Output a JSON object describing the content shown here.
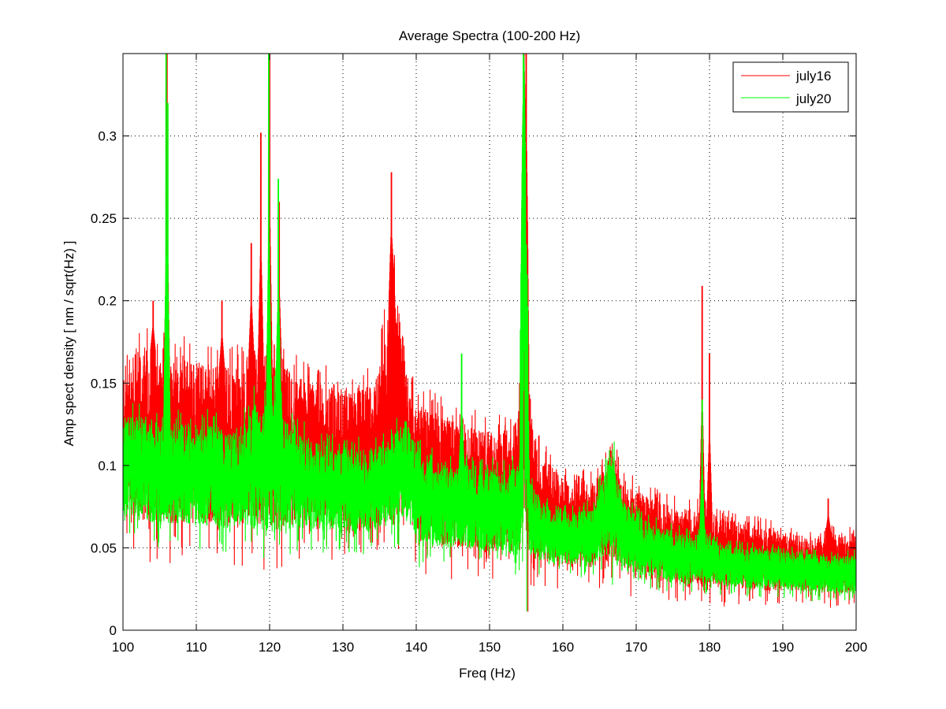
{
  "chart_data": {
    "type": "line",
    "title": "Average Spectra (100-200 Hz)",
    "xlabel": "Freq (Hz)",
    "ylabel": "Amp spect density [ nm / sqrt(Hz) ]",
    "xlim": [
      100,
      200
    ],
    "ylim": [
      0,
      0.35
    ],
    "xticks": [
      100,
      110,
      120,
      130,
      140,
      150,
      160,
      170,
      180,
      190,
      200
    ],
    "yticks": [
      0,
      0.05,
      0.1,
      0.15,
      0.2,
      0.25,
      0.3
    ],
    "ytick_labels": [
      "0",
      "0.05",
      "0.1",
      "0.15",
      "0.2",
      "0.25",
      "0.3"
    ],
    "grid": true,
    "legend": "top-right",
    "series": [
      {
        "name": "july16",
        "color": "#ff0000",
        "x": [
          100,
          102,
          104,
          106,
          108,
          110,
          112,
          114,
          116,
          118,
          120,
          121,
          122,
          124,
          126,
          128,
          130,
          132,
          134,
          135,
          136,
          137,
          138,
          139,
          140,
          142,
          144,
          146,
          148,
          150,
          152,
          154,
          154.7,
          155.5,
          157,
          160,
          162,
          164,
          166,
          166.5,
          168,
          170,
          172,
          175,
          178,
          179,
          180,
          182,
          185,
          188,
          190,
          192,
          195,
          196.2,
          198,
          200
        ],
        "min": [
          0.065,
          0.065,
          0.065,
          0.065,
          0.065,
          0.065,
          0.065,
          0.063,
          0.062,
          0.066,
          0.06,
          0.06,
          0.062,
          0.064,
          0.064,
          0.062,
          0.06,
          0.058,
          0.06,
          0.062,
          0.065,
          0.07,
          0.07,
          0.07,
          0.055,
          0.052,
          0.05,
          0.05,
          0.05,
          0.048,
          0.048,
          0.048,
          0.05,
          0.045,
          0.04,
          0.038,
          0.038,
          0.038,
          0.04,
          0.045,
          0.035,
          0.032,
          0.03,
          0.028,
          0.028,
          0.028,
          0.027,
          0.025,
          0.025,
          0.024,
          0.024,
          0.024,
          0.023,
          0.023,
          0.022,
          0.022
        ],
        "max": [
          0.16,
          0.17,
          0.17,
          0.165,
          0.165,
          0.165,
          0.16,
          0.16,
          0.16,
          0.17,
          0.165,
          0.16,
          0.16,
          0.155,
          0.15,
          0.15,
          0.148,
          0.145,
          0.148,
          0.16,
          0.19,
          0.22,
          0.18,
          0.145,
          0.14,
          0.135,
          0.13,
          0.125,
          0.125,
          0.12,
          0.12,
          0.13,
          0.35,
          0.13,
          0.105,
          0.095,
          0.092,
          0.09,
          0.1,
          0.118,
          0.09,
          0.085,
          0.08,
          0.075,
          0.072,
          0.075,
          0.072,
          0.068,
          0.065,
          0.062,
          0.06,
          0.058,
          0.056,
          0.06,
          0.058,
          0.06
        ],
        "peaks": [
          [
            104.1,
            0.2
          ],
          [
            106.0,
            0.35
          ],
          [
            113.5,
            0.2
          ],
          [
            117.5,
            0.235
          ],
          [
            118.8,
            0.302
          ],
          [
            120.0,
            0.35
          ],
          [
            121.3,
            0.26
          ],
          [
            136.6,
            0.278
          ],
          [
            154.7,
            0.35
          ],
          [
            155.0,
            0.35
          ],
          [
            179.0,
            0.209
          ],
          [
            180.0,
            0.168
          ],
          [
            196.2,
            0.08
          ]
        ]
      },
      {
        "name": "july20",
        "color": "#00ff00",
        "x": [
          100,
          102,
          104,
          106,
          108,
          110,
          112,
          114,
          116,
          118,
          120,
          121,
          122,
          124,
          126,
          128,
          130,
          132,
          134,
          136,
          138,
          139,
          140,
          142,
          144,
          146,
          148,
          150,
          152,
          154,
          154.7,
          155.5,
          157,
          160,
          162,
          164,
          166,
          166.5,
          168,
          170,
          172,
          175,
          178,
          179,
          180,
          182,
          185,
          188,
          190,
          192,
          195,
          198,
          200
        ],
        "min": [
          0.07,
          0.068,
          0.065,
          0.065,
          0.065,
          0.063,
          0.063,
          0.062,
          0.06,
          0.062,
          0.06,
          0.06,
          0.062,
          0.062,
          0.06,
          0.06,
          0.058,
          0.058,
          0.06,
          0.062,
          0.065,
          0.065,
          0.052,
          0.05,
          0.05,
          0.05,
          0.048,
          0.048,
          0.046,
          0.045,
          0.05,
          0.045,
          0.042,
          0.04,
          0.04,
          0.04,
          0.042,
          0.045,
          0.036,
          0.034,
          0.032,
          0.03,
          0.03,
          0.03,
          0.028,
          0.027,
          0.026,
          0.025,
          0.025,
          0.024,
          0.023,
          0.022,
          0.022
        ],
        "max": [
          0.13,
          0.13,
          0.13,
          0.125,
          0.125,
          0.125,
          0.125,
          0.12,
          0.12,
          0.14,
          0.14,
          0.15,
          0.13,
          0.12,
          0.115,
          0.112,
          0.11,
          0.11,
          0.11,
          0.115,
          0.125,
          0.125,
          0.11,
          0.105,
          0.1,
          0.1,
          0.1,
          0.098,
          0.098,
          0.1,
          0.35,
          0.09,
          0.08,
          0.072,
          0.072,
          0.075,
          0.1,
          0.118,
          0.08,
          0.07,
          0.065,
          0.06,
          0.058,
          0.06,
          0.056,
          0.052,
          0.05,
          0.05,
          0.05,
          0.048,
          0.046,
          0.045,
          0.046
        ],
        "peaks": [
          [
            105.9,
            0.35
          ],
          [
            106.1,
            0.32
          ],
          [
            119.9,
            0.35
          ],
          [
            121.2,
            0.274
          ],
          [
            146.2,
            0.168
          ],
          [
            154.6,
            0.35
          ],
          [
            179.0,
            0.14
          ]
        ]
      }
    ]
  }
}
